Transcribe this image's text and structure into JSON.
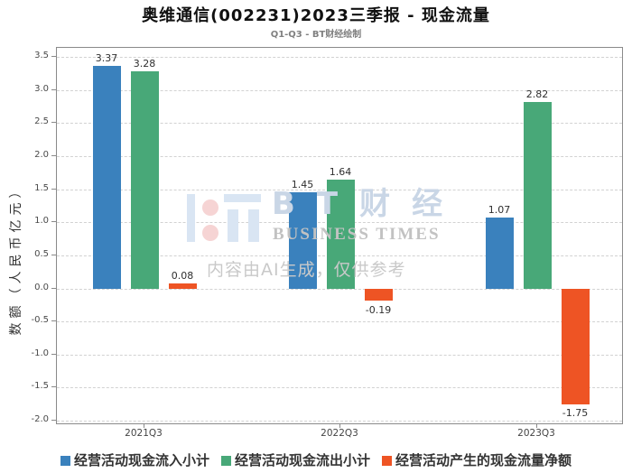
{
  "title": "奥维通信(002231)2023三季报 - 现金流量",
  "subtitle": "Q1-Q3 - BT财经绘制",
  "chart_data": {
    "type": "bar",
    "categories": [
      "2021Q3",
      "2022Q3",
      "2023Q3"
    ],
    "series": [
      {
        "name": "经营活动现金流入小计",
        "color": "#3a81bd",
        "values": [
          3.37,
          1.45,
          1.07
        ]
      },
      {
        "name": "经营活动现金流出小计",
        "color": "#48a878",
        "values": [
          3.28,
          1.64,
          2.82
        ]
      },
      {
        "name": "经营活动产生的现金流量净额",
        "color": "#ee5424",
        "values": [
          0.08,
          -0.19,
          -1.75
        ]
      }
    ],
    "title": "奥维通信(002231)2023三季报 - 现金流量",
    "xlabel": "",
    "ylabel": "数额（人民币亿元）",
    "ylim": [
      -2.0,
      3.5
    ],
    "yticks": [
      "3.5",
      "3.0",
      "2.5",
      "2.0",
      "1.5",
      "1.0",
      "0.5",
      "0.0",
      "-0.5",
      "-1.0",
      "-1.5",
      "-2.0"
    ],
    "grid": true,
    "legend_position": "bottom",
    "value_labels": [
      [
        "3.37",
        "1.45",
        "1.07"
      ],
      [
        "3.28",
        "1.64",
        "2.82"
      ],
      [
        "0.08",
        "-0.19",
        "-1.75"
      ]
    ]
  },
  "watermark": {
    "brand_cn": "BT财经",
    "brand_en": "BUSINESS TIMES",
    "disclaimer": "内容由AI生成，仅供参考"
  }
}
